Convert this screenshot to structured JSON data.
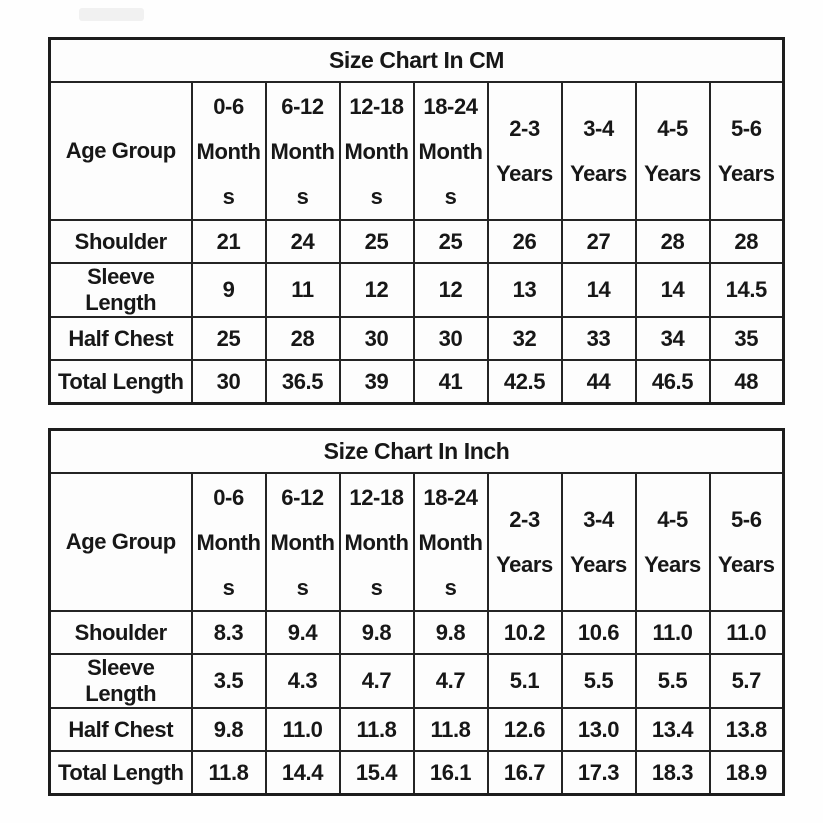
{
  "badge": {
    "color": "#f1f1f1"
  },
  "tables": [
    {
      "title": "Size Chart In CM",
      "corner": "Age Group",
      "columns": [
        "0-6\nMonth\ns",
        "6-12\nMonth\ns",
        "12-18\nMonth\ns",
        "18-24\nMonth\ns",
        "2-3\nYears",
        "3-4\nYears",
        "4-5\nYears",
        "5-6\nYears"
      ],
      "rows": [
        {
          "label": "Shoulder",
          "values": [
            "21",
            "24",
            "25",
            "25",
            "26",
            "27",
            "28",
            "28"
          ]
        },
        {
          "label": "Sleeve Length",
          "values": [
            "9",
            "11",
            "12",
            "12",
            "13",
            "14",
            "14",
            "14.5"
          ]
        },
        {
          "label": "Half Chest",
          "values": [
            "25",
            "28",
            "30",
            "30",
            "32",
            "33",
            "34",
            "35"
          ]
        },
        {
          "label": "Total Length",
          "values": [
            "30",
            "36.5",
            "39",
            "41",
            "42.5",
            "44",
            "46.5",
            "48"
          ]
        }
      ]
    },
    {
      "title": "Size Chart In Inch",
      "corner": "Age Group",
      "columns": [
        "0-6\nMonth\ns",
        "6-12\nMonth\ns",
        "12-18\nMonth\ns",
        "18-24\nMonth\ns",
        "2-3\nYears",
        "3-4\nYears",
        "4-5\nYears",
        "5-6\nYears"
      ],
      "rows": [
        {
          "label": "Shoulder",
          "values": [
            "8.3",
            "9.4",
            "9.8",
            "9.8",
            "10.2",
            "10.6",
            "11.0",
            "11.0"
          ]
        },
        {
          "label": "Sleeve Length",
          "values": [
            "3.5",
            "4.3",
            "4.7",
            "4.7",
            "5.1",
            "5.5",
            "5.5",
            "5.7"
          ]
        },
        {
          "label": "Half Chest",
          "values": [
            "9.8",
            "11.0",
            "11.8",
            "11.8",
            "12.6",
            "13.0",
            "13.4",
            "13.8"
          ]
        },
        {
          "label": "Total Length",
          "values": [
            "11.8",
            "14.4",
            "15.4",
            "16.1",
            "16.7",
            "17.3",
            "18.3",
            "18.9"
          ]
        }
      ]
    }
  ],
  "chart_data": [
    {
      "type": "table",
      "title": "Size Chart In CM",
      "corner_label": "Age Group",
      "categories": [
        "0-6 Months",
        "6-12 Months",
        "12-18 Months",
        "18-24 Months",
        "2-3 Years",
        "3-4 Years",
        "4-5 Years",
        "5-6 Years"
      ],
      "series": [
        {
          "name": "Shoulder",
          "values": [
            21,
            24,
            25,
            25,
            26,
            27,
            28,
            28
          ]
        },
        {
          "name": "Sleeve Length",
          "values": [
            9,
            11,
            12,
            12,
            13,
            14,
            14,
            14.5
          ]
        },
        {
          "name": "Half Chest",
          "values": [
            25,
            28,
            30,
            30,
            32,
            33,
            34,
            35
          ]
        },
        {
          "name": "Total Length",
          "values": [
            30,
            36.5,
            39,
            41,
            42.5,
            44,
            46.5,
            48
          ]
        }
      ]
    },
    {
      "type": "table",
      "title": "Size Chart In Inch",
      "corner_label": "Age Group",
      "categories": [
        "0-6 Months",
        "6-12 Months",
        "12-18 Months",
        "18-24 Months",
        "2-3 Years",
        "3-4 Years",
        "4-5 Years",
        "5-6 Years"
      ],
      "series": [
        {
          "name": "Shoulder",
          "values": [
            8.3,
            9.4,
            9.8,
            9.8,
            10.2,
            10.6,
            11.0,
            11.0
          ]
        },
        {
          "name": "Sleeve Length",
          "values": [
            3.5,
            4.3,
            4.7,
            4.7,
            5.1,
            5.5,
            5.5,
            5.7
          ]
        },
        {
          "name": "Half Chest",
          "values": [
            9.8,
            11.0,
            11.8,
            11.8,
            12.6,
            13.0,
            13.4,
            13.8
          ]
        },
        {
          "name": "Total Length",
          "values": [
            11.8,
            14.4,
            15.4,
            16.1,
            16.7,
            17.3,
            18.3,
            18.9
          ]
        }
      ]
    }
  ]
}
